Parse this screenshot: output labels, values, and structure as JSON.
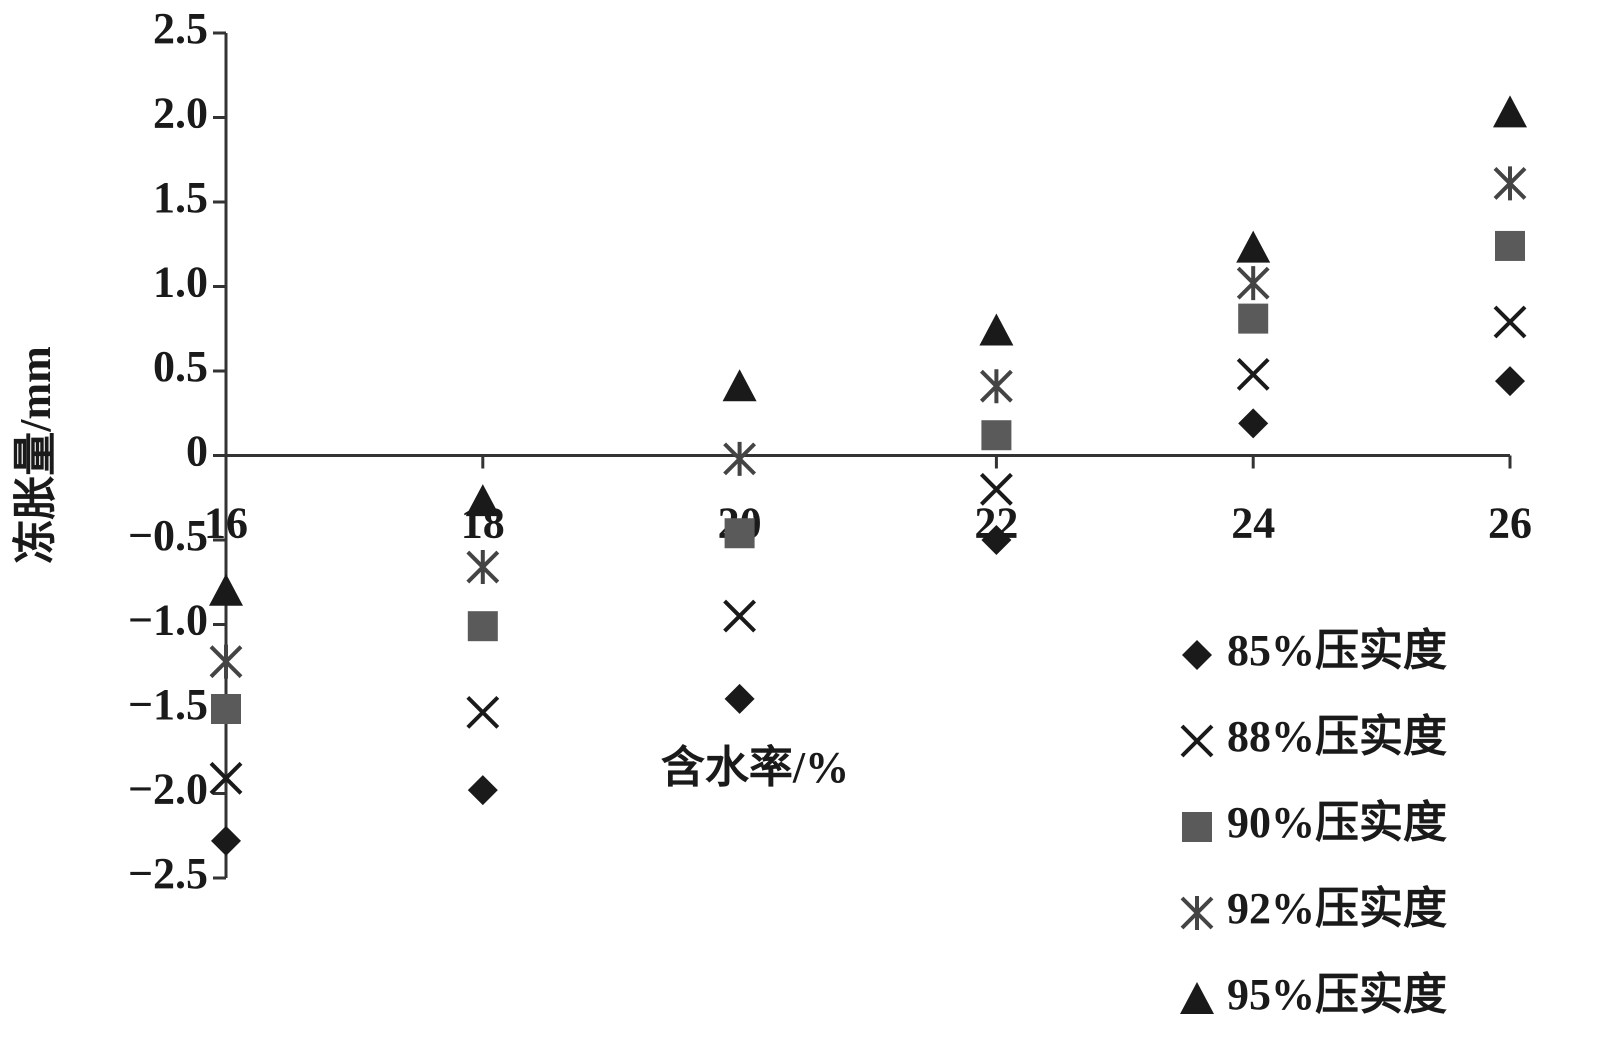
{
  "chart_data": {
    "type": "scatter",
    "x_label": "含水率/%",
    "y_label": "冻胀量/mm",
    "x": [
      16,
      18,
      20,
      22,
      24,
      26
    ],
    "xlim": [
      16,
      26
    ],
    "xticks": [
      16,
      18,
      20,
      22,
      24,
      26
    ],
    "ylim": [
      -2.5,
      2.5
    ],
    "yticks": [
      {
        "value": -2.5,
        "label": "−2.5"
      },
      {
        "value": -2,
        "label": "−2.0"
      },
      {
        "value": -1.5,
        "label": "−1.5"
      },
      {
        "value": -1,
        "label": "−1.0"
      },
      {
        "value": -0.5,
        "label": "−0.5"
      },
      0,
      0.5,
      {
        "value": 1,
        "label": "1.0"
      },
      1.5,
      {
        "value": 2,
        "label": "2.0"
      },
      2.5
    ],
    "legend": "lower right",
    "series": [
      {
        "name": "85%压实度",
        "color": "#1a1a1a",
        "marker": "diamond",
        "values": [
          -2.28,
          -1.98,
          -1.44,
          -0.5,
          0.19,
          0.44
        ]
      },
      {
        "name": "88%压实度",
        "color": "#1a1a1a",
        "marker": "x",
        "values": [
          -1.91,
          -1.52,
          -0.95,
          -0.2,
          0.48,
          0.79
        ]
      },
      {
        "name": "90%压实度",
        "color": "#5a5a5a",
        "marker": "square",
        "values": [
          -1.5,
          -1.01,
          -0.46,
          0.12,
          0.81,
          1.24
        ]
      },
      {
        "name": "92%压实度",
        "color": "#444444",
        "marker": "asterisk",
        "values": [
          -1.22,
          -0.66,
          -0.02,
          0.41,
          1.02,
          1.61
        ]
      },
      {
        "name": "95%压实度",
        "color": "#1a1a1a",
        "marker": "triangle",
        "values": [
          -0.8,
          -0.27,
          0.41,
          0.74,
          1.23,
          2.03
        ]
      }
    ]
  }
}
